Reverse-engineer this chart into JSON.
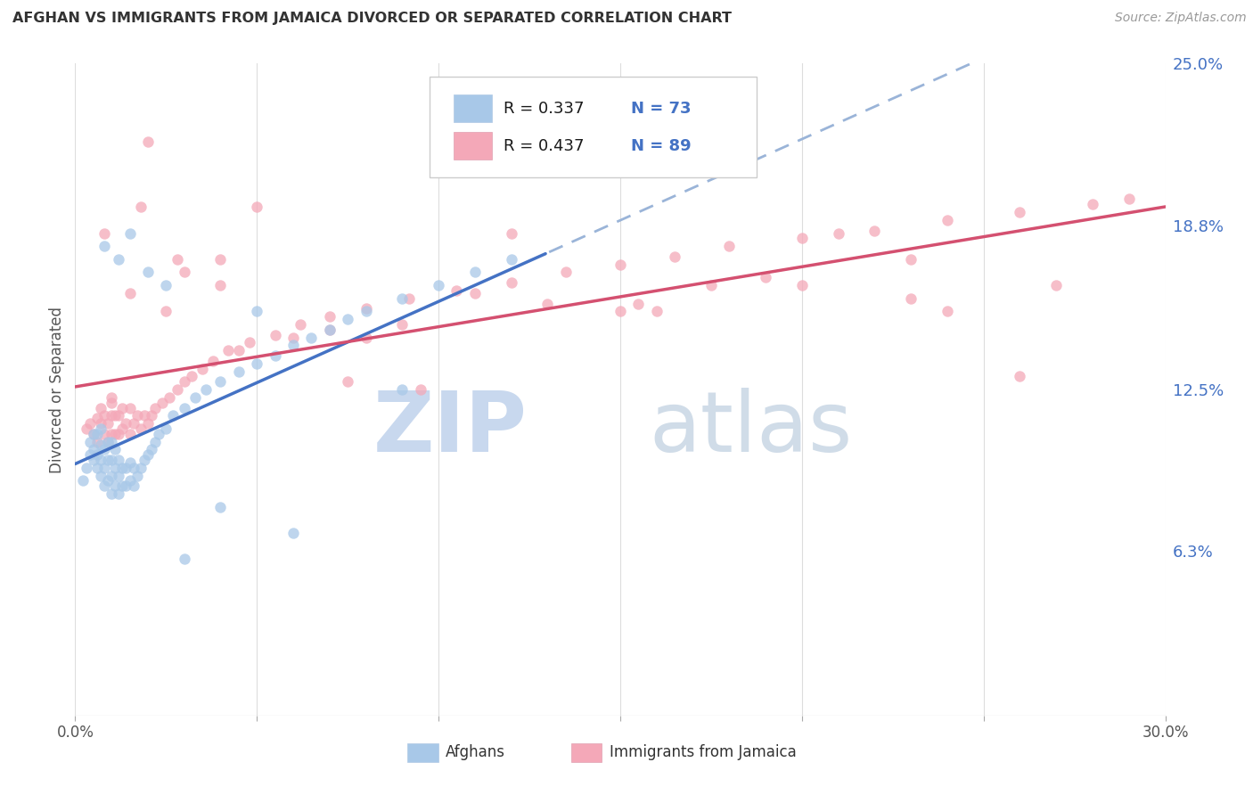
{
  "title": "AFGHAN VS IMMIGRANTS FROM JAMAICA DIVORCED OR SEPARATED CORRELATION CHART",
  "source": "Source: ZipAtlas.com",
  "ylabel": "Divorced or Separated",
  "xmin": 0.0,
  "xmax": 0.3,
  "ymin": 0.0,
  "ymax": 0.25,
  "yticks": [
    0.063,
    0.125,
    0.188,
    0.25
  ],
  "ytick_labels": [
    "6.3%",
    "12.5%",
    "18.8%",
    "25.0%"
  ],
  "xtick_labels": [
    "0.0%",
    "",
    "",
    "",
    "",
    "",
    "30.0%"
  ],
  "color_afghan": "#a8c8e8",
  "color_jamaica": "#f4a8b8",
  "color_trend_afghan_solid": "#4472c4",
  "color_trend_afghan_dash": "#9ab4d8",
  "color_trend_jamaica": "#d45070",
  "watermark_zip": "ZIP",
  "watermark_atlas": "atlas",
  "legend_entries": [
    {
      "color": "#a8c8e8",
      "text_r": "R = 0.337",
      "text_n": "N = 73"
    },
    {
      "color": "#f4a8b8",
      "text_r": "R = 0.437",
      "text_n": "N = 89"
    }
  ],
  "af_x": [
    0.002,
    0.003,
    0.004,
    0.004,
    0.005,
    0.005,
    0.005,
    0.006,
    0.006,
    0.006,
    0.007,
    0.007,
    0.007,
    0.007,
    0.008,
    0.008,
    0.008,
    0.009,
    0.009,
    0.009,
    0.01,
    0.01,
    0.01,
    0.01,
    0.011,
    0.011,
    0.011,
    0.012,
    0.012,
    0.012,
    0.013,
    0.013,
    0.014,
    0.014,
    0.015,
    0.015,
    0.016,
    0.016,
    0.017,
    0.018,
    0.019,
    0.02,
    0.021,
    0.022,
    0.023,
    0.025,
    0.027,
    0.03,
    0.033,
    0.036,
    0.04,
    0.045,
    0.05,
    0.055,
    0.06,
    0.065,
    0.07,
    0.075,
    0.08,
    0.09,
    0.1,
    0.11,
    0.12,
    0.012,
    0.008,
    0.015,
    0.02,
    0.025,
    0.03,
    0.04,
    0.05,
    0.06,
    0.09
  ],
  "af_y": [
    0.09,
    0.095,
    0.1,
    0.105,
    0.098,
    0.102,
    0.108,
    0.095,
    0.1,
    0.108,
    0.092,
    0.098,
    0.104,
    0.11,
    0.088,
    0.095,
    0.102,
    0.09,
    0.098,
    0.105,
    0.085,
    0.092,
    0.098,
    0.105,
    0.088,
    0.095,
    0.102,
    0.085,
    0.092,
    0.098,
    0.088,
    0.095,
    0.088,
    0.095,
    0.09,
    0.097,
    0.088,
    0.095,
    0.092,
    0.095,
    0.098,
    0.1,
    0.102,
    0.105,
    0.108,
    0.11,
    0.115,
    0.118,
    0.122,
    0.125,
    0.128,
    0.132,
    0.135,
    0.138,
    0.142,
    0.145,
    0.148,
    0.152,
    0.155,
    0.16,
    0.165,
    0.17,
    0.175,
    0.175,
    0.18,
    0.185,
    0.17,
    0.165,
    0.06,
    0.08,
    0.155,
    0.07,
    0.125
  ],
  "ja_x": [
    0.003,
    0.004,
    0.005,
    0.006,
    0.006,
    0.007,
    0.007,
    0.008,
    0.008,
    0.009,
    0.009,
    0.01,
    0.01,
    0.01,
    0.011,
    0.011,
    0.012,
    0.012,
    0.013,
    0.013,
    0.014,
    0.015,
    0.015,
    0.016,
    0.017,
    0.018,
    0.019,
    0.02,
    0.021,
    0.022,
    0.024,
    0.026,
    0.028,
    0.03,
    0.032,
    0.035,
    0.038,
    0.042,
    0.048,
    0.055,
    0.062,
    0.07,
    0.08,
    0.092,
    0.105,
    0.12,
    0.135,
    0.15,
    0.165,
    0.18,
    0.2,
    0.22,
    0.24,
    0.26,
    0.28,
    0.29,
    0.008,
    0.015,
    0.025,
    0.04,
    0.06,
    0.09,
    0.13,
    0.175,
    0.23,
    0.02,
    0.05,
    0.08,
    0.12,
    0.16,
    0.2,
    0.24,
    0.03,
    0.07,
    0.11,
    0.15,
    0.19,
    0.23,
    0.27,
    0.04,
    0.095,
    0.155,
    0.21,
    0.26,
    0.01,
    0.018,
    0.028,
    0.045,
    0.075
  ],
  "ja_y": [
    0.11,
    0.112,
    0.108,
    0.114,
    0.105,
    0.112,
    0.118,
    0.108,
    0.115,
    0.105,
    0.112,
    0.108,
    0.115,
    0.122,
    0.108,
    0.115,
    0.108,
    0.115,
    0.11,
    0.118,
    0.112,
    0.108,
    0.118,
    0.112,
    0.115,
    0.11,
    0.115,
    0.112,
    0.115,
    0.118,
    0.12,
    0.122,
    0.125,
    0.128,
    0.13,
    0.133,
    0.136,
    0.14,
    0.143,
    0.146,
    0.15,
    0.153,
    0.156,
    0.16,
    0.163,
    0.166,
    0.17,
    0.173,
    0.176,
    0.18,
    0.183,
    0.186,
    0.19,
    0.193,
    0.196,
    0.198,
    0.185,
    0.162,
    0.155,
    0.165,
    0.145,
    0.15,
    0.158,
    0.165,
    0.175,
    0.22,
    0.195,
    0.145,
    0.185,
    0.155,
    0.165,
    0.155,
    0.17,
    0.148,
    0.162,
    0.155,
    0.168,
    0.16,
    0.165,
    0.175,
    0.125,
    0.158,
    0.185,
    0.13,
    0.12,
    0.195,
    0.175,
    0.14,
    0.128
  ]
}
